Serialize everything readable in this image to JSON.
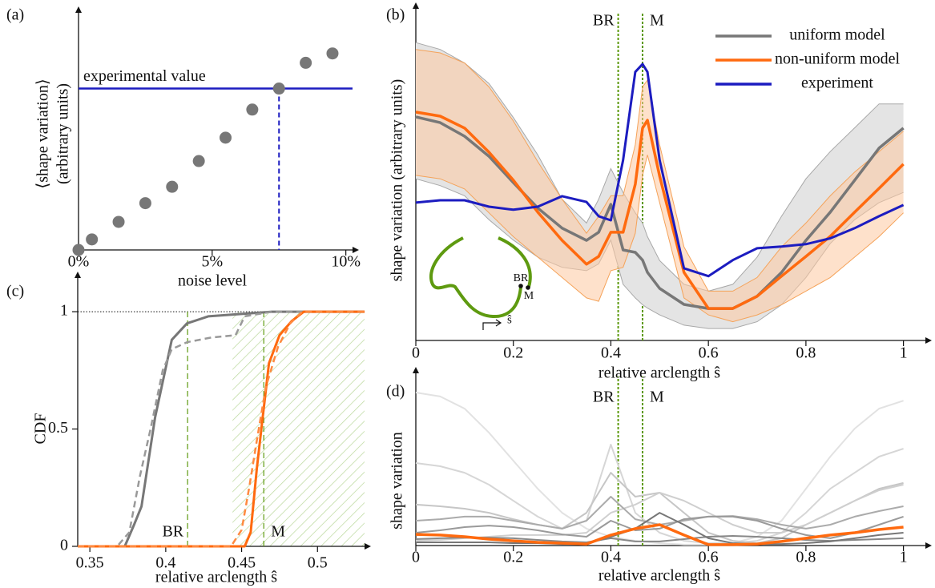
{
  "chart_data": [
    {
      "type": "scatter",
      "title": "(a)",
      "xlabel": "noise level",
      "ylabel": [
        "⟨shape variation⟩",
        "(arbitrary units)"
      ],
      "x": [
        0,
        0.5,
        1.5,
        2.5,
        3.5,
        4.5,
        5.5,
        6.5,
        7.5,
        8.5,
        9.5
      ],
      "values": [
        0,
        0.045,
        0.12,
        0.2,
        0.27,
        0.38,
        0.48,
        0.6,
        0.69,
        0.8,
        0.84
      ],
      "color": "#777777",
      "xlim": [
        0,
        10.25
      ],
      "ylim": [
        0,
        1
      ],
      "xticks": [
        {
          "value": 0,
          "label": "0%"
        },
        {
          "value": 5,
          "label": "5%"
        },
        {
          "value": 10,
          "label": "10%"
        }
      ],
      "reference": {
        "label": "experimental value",
        "x": 7.5,
        "y": 0.69,
        "color": "#1c1cc0"
      }
    },
    {
      "type": "line",
      "title": "(b)",
      "xlabel": "relative arclength ŝ",
      "ylabel": "shape variation (arbitrary units)",
      "x": [
        0,
        0.05,
        0.1,
        0.15,
        0.2,
        0.25,
        0.3,
        0.35,
        0.375,
        0.4,
        0.425,
        0.45,
        0.465,
        0.475,
        0.5,
        0.55,
        0.6,
        0.65,
        0.7,
        0.75,
        0.8,
        0.85,
        0.9,
        0.95,
        1
      ],
      "series": [
        {
          "name": "uniform model",
          "color": "#777777",
          "width": 3.5,
          "values": [
            0.692,
            0.675,
            0.635,
            0.576,
            0.499,
            0.424,
            0.365,
            0.329,
            0.353,
            0.435,
            0.301,
            0.294,
            0.271,
            0.235,
            0.188,
            0.141,
            0.129,
            0.129,
            0.165,
            0.235,
            0.329,
            0.412,
            0.506,
            0.6,
            0.659
          ],
          "band_upper": [
            0.91,
            0.89,
            0.85,
            0.79,
            0.69,
            0.58,
            0.45,
            0.38,
            0.45,
            0.54,
            0.47,
            0.41,
            0.38,
            0.34,
            0.27,
            0.2,
            0.18,
            0.2,
            0.28,
            0.4,
            0.51,
            0.59,
            0.66,
            0.73,
            0.73
          ],
          "band_lower": [
            0.51,
            0.49,
            0.46,
            0.39,
            0.33,
            0.28,
            0.25,
            0.24,
            0.26,
            0.33,
            0.2,
            0.16,
            0.14,
            0.13,
            0.11,
            0.08,
            0.07,
            0.07,
            0.09,
            0.14,
            0.22,
            0.32,
            0.39,
            0.44,
            0.47
          ],
          "band_color": "#e4e4e4",
          "band_edge": "#a8a8a8"
        },
        {
          "name": "non-uniform model",
          "color": "#ff6a0f",
          "width": 3.5,
          "values": [
            0.706,
            0.694,
            0.659,
            0.588,
            0.506,
            0.412,
            0.329,
            0.259,
            0.282,
            0.353,
            0.353,
            0.494,
            0.659,
            0.682,
            0.518,
            0.235,
            0.129,
            0.129,
            0.165,
            0.224,
            0.282,
            0.341,
            0.412,
            0.482,
            0.553
          ],
          "band_upper": [
            0.89,
            0.88,
            0.85,
            0.78,
            0.68,
            0.56,
            0.45,
            0.35,
            0.4,
            0.46,
            0.46,
            0.61,
            0.78,
            0.8,
            0.61,
            0.31,
            0.18,
            0.18,
            0.22,
            0.31,
            0.38,
            0.46,
            0.53,
            0.59,
            0.65
          ],
          "band_lower": [
            0.52,
            0.51,
            0.48,
            0.41,
            0.34,
            0.28,
            0.22,
            0.16,
            0.15,
            0.24,
            0.25,
            0.35,
            0.52,
            0.58,
            0.44,
            0.16,
            0.11,
            0.09,
            0.11,
            0.14,
            0.18,
            0.22,
            0.28,
            0.34,
            0.41
          ],
          "band_color": "rgba(253,200,160,0.55)",
          "band_edge": "#f5a35a"
        },
        {
          "name": "experiment",
          "color": "#1c1cc0",
          "width": 3,
          "values": [
            0.44,
            0.447,
            0.447,
            0.428,
            0.419,
            0.428,
            0.459,
            0.442,
            0.4,
            0.388,
            0.565,
            0.824,
            0.847,
            0.824,
            0.565,
            0.247,
            0.224,
            0.271,
            0.306,
            0.311,
            0.318,
            0.335,
            0.365,
            0.4,
            0.433
          ]
        }
      ],
      "xlim": [
        0,
        1.045
      ],
      "ylim": [
        0.035,
        1
      ],
      "xticks": [
        0,
        0.2,
        0.4,
        0.6,
        0.8,
        1
      ],
      "vlines": [
        {
          "label": "BR",
          "x": 0.415
        },
        {
          "label": "M",
          "x": 0.465
        }
      ],
      "vline_color": "#5e9a10",
      "legend": "upper right",
      "inset": {
        "labels": [
          "BR",
          "M"
        ],
        "arc_label": "ŝ",
        "color": "#5e9a10"
      }
    },
    {
      "type": "line",
      "title": "(c)",
      "xlabel": "relative arclength ŝ",
      "ylabel": "CDF",
      "series": [
        {
          "color": "#777777",
          "width": 3,
          "dash": false,
          "x": [
            0.342,
            0.373,
            0.379,
            0.384,
            0.393,
            0.404,
            0.414,
            0.428,
            0.449,
            0.47,
            0.531
          ],
          "values": [
            0,
            0,
            0.09,
            0.17,
            0.55,
            0.88,
            0.95,
            0.98,
            0.99,
            1,
            1
          ]
        },
        {
          "color": "#999999",
          "width": 2.5,
          "dash": true,
          "x": [
            0.342,
            0.368,
            0.376,
            0.383,
            0.39,
            0.398,
            0.404,
            0.414,
            0.43,
            0.446,
            0.452,
            0.47,
            0.531
          ],
          "values": [
            0,
            0,
            0.06,
            0.3,
            0.5,
            0.75,
            0.84,
            0.87,
            0.89,
            0.9,
            0.98,
            1,
            1
          ]
        },
        {
          "color": "#ff6a0f",
          "width": 3,
          "dash": false,
          "x": [
            0.342,
            0.452,
            0.456,
            0.46,
            0.463,
            0.468,
            0.475,
            0.483,
            0.491,
            0.531
          ],
          "values": [
            0,
            0,
            0.06,
            0.33,
            0.5,
            0.78,
            0.9,
            0.96,
            1,
            1
          ]
        },
        {
          "color": "#ff8a40",
          "width": 2.5,
          "dash": true,
          "x": [
            0.342,
            0.443,
            0.45,
            0.455,
            0.46,
            0.466,
            0.474,
            0.482,
            0.49,
            0.531
          ],
          "values": [
            0,
            0,
            0.07,
            0.25,
            0.45,
            0.68,
            0.85,
            0.95,
            1,
            1
          ]
        }
      ],
      "xlim": [
        0.342,
        0.531
      ],
      "ylim": [
        0,
        1.13
      ],
      "xticks": [
        0.35,
        0.4,
        0.45,
        0.5
      ],
      "yticks": [
        0,
        0.5,
        1
      ],
      "vlines": [
        {
          "label": "BR",
          "x": 0.4144
        },
        {
          "label": "M",
          "x": 0.4646
        }
      ],
      "vline_color": "#5e9a10",
      "ref_y": 1,
      "hatch_from": 0.444
    },
    {
      "type": "line",
      "title": "(d)",
      "xlabel": "relative arclength ŝ",
      "ylabel": "shape variation",
      "x": [
        0,
        0.05,
        0.1,
        0.15,
        0.2,
        0.25,
        0.3,
        0.35,
        0.4,
        0.45,
        0.5,
        0.55,
        0.6,
        0.65,
        0.7,
        0.75,
        0.8,
        0.85,
        0.9,
        0.95,
        1
      ],
      "series": [
        {
          "color": "#e2e2e2",
          "width": 2,
          "values": [
            0.905,
            0.882,
            0.81,
            0.668,
            0.502,
            0.336,
            0.194,
            0.1,
            0.052,
            0.028,
            0.014,
            0.005,
            0.005,
            0.014,
            0.052,
            0.147,
            0.336,
            0.526,
            0.692,
            0.81,
            0.857
          ]
        },
        {
          "color": "#d6d6d6",
          "width": 2,
          "values": [
            0.488,
            0.469,
            0.431,
            0.36,
            0.265,
            0.171,
            0.1,
            0.147,
            0.597,
            0.194,
            0.076,
            0.028,
            0.014,
            0.014,
            0.028,
            0.076,
            0.194,
            0.336,
            0.431,
            0.526,
            0.573
          ]
        },
        {
          "color": "#c6c6c6",
          "width": 2,
          "values": [
            0.242,
            0.232,
            0.218,
            0.194,
            0.156,
            0.123,
            0.1,
            0.194,
            0.431,
            0.289,
            0.313,
            0.194,
            0.076,
            0.028,
            0.014,
            0.043,
            0.123,
            0.194,
            0.265,
            0.336,
            0.37
          ]
        },
        {
          "color": "#cfcfcf",
          "width": 2,
          "values": [
            0.028,
            0.033,
            0.043,
            0.052,
            0.062,
            0.062,
            0.062,
            0.076,
            0.194,
            0.242,
            0.313,
            0.265,
            0.194,
            0.123,
            0.076,
            0.076,
            0.123,
            0.194,
            0.265,
            0.327,
            0.36
          ]
        },
        {
          "color": "#ababab",
          "width": 2,
          "values": [
            0.147,
            0.156,
            0.171,
            0.171,
            0.147,
            0.123,
            0.1,
            0.147,
            0.289,
            0.156,
            0.123,
            0.147,
            0.171,
            0.175,
            0.156,
            0.123,
            0.1,
            0.123,
            0.171,
            0.204,
            0.232
          ]
        },
        {
          "color": "#9a9a9a",
          "width": 2,
          "values": [
            0.076,
            0.09,
            0.109,
            0.118,
            0.109,
            0.09,
            0.066,
            0.052,
            0.147,
            0.09,
            0.1,
            0.156,
            0.171,
            0.171,
            0.147,
            0.1,
            0.062,
            0.043,
            0.076,
            0.123,
            0.171
          ]
        },
        {
          "color": "#888888",
          "width": 2,
          "values": [
            0.038,
            0.043,
            0.047,
            0.047,
            0.043,
            0.033,
            0.024,
            0.019,
            0.043,
            0.024,
            0.024,
            0.038,
            0.052,
            0.057,
            0.052,
            0.043,
            0.033,
            0.028,
            0.033,
            0.038,
            0.043
          ]
        },
        {
          "color": "#777777",
          "width": 2,
          "values": [
            0.019,
            0.019,
            0.019,
            0.019,
            0.014,
            0.014,
            0.009,
            0.009,
            0.052,
            0.1,
            0.194,
            0.123,
            0.043,
            0.014,
            0.009,
            0.009,
            0.014,
            0.024,
            0.043,
            0.062,
            0.076
          ]
        },
        {
          "color": "#ff6a0f",
          "width": 3.5,
          "values": [
            0.066,
            0.062,
            0.052,
            0.038,
            0.028,
            0.019,
            0.014,
            0.009,
            0.062,
            0.1,
            0.123,
            0.062,
            0.005,
            0.005,
            0.009,
            0.024,
            0.043,
            0.062,
            0.076,
            0.095,
            0.109
          ]
        }
      ],
      "xlim": [
        0,
        1.045
      ],
      "ylim": [
        0,
        1
      ],
      "xticks": [
        0,
        0.2,
        0.4,
        0.6,
        0.8,
        1
      ],
      "vlines": [
        {
          "label": "BR",
          "x": 0.415
        },
        {
          "label": "M",
          "x": 0.465
        }
      ],
      "vline_color": "#5e9a10"
    }
  ]
}
